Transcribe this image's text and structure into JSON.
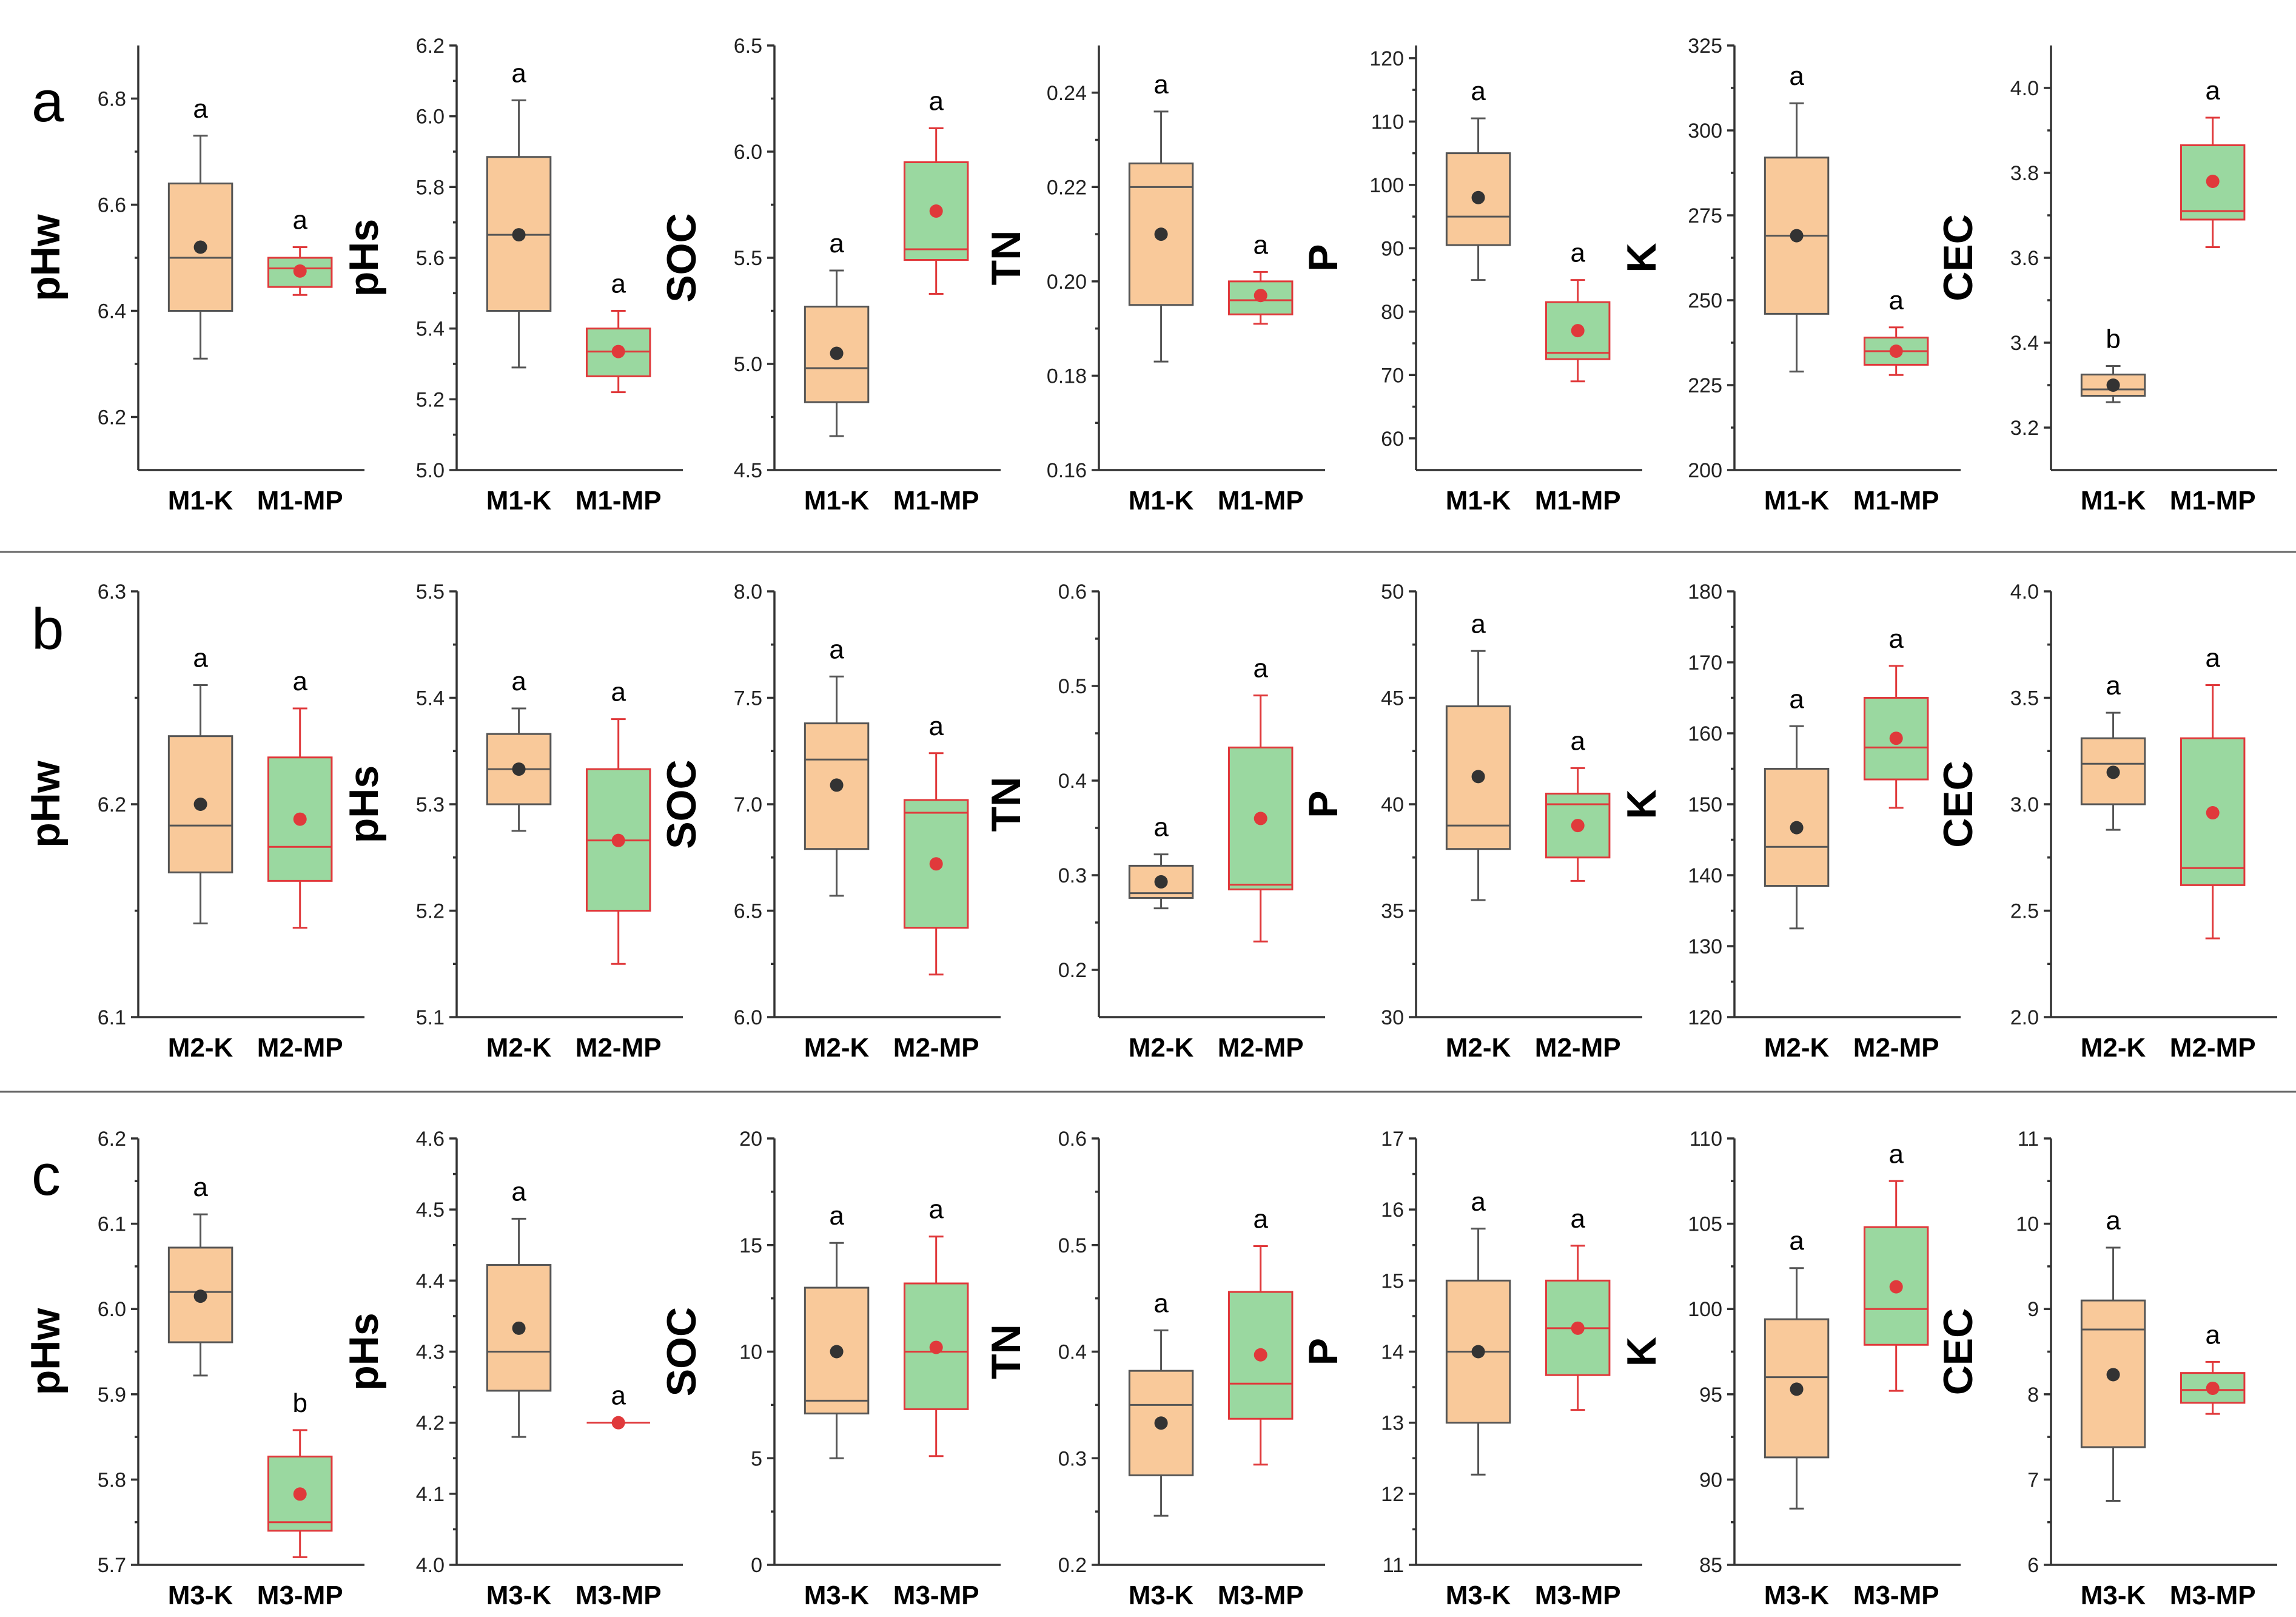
{
  "colors": {
    "control_fill": "#F9C99A",
    "control_stroke": "#555555",
    "control_mean": "#333333",
    "treatment_fill": "#9AD8A0",
    "treatment_stroke": "#E0393B",
    "treatment_mean": "#E0393B"
  },
  "chart_data": [
    {
      "panel": "a",
      "title": "pHw",
      "type": "box",
      "ylabel": "pHw",
      "ylim": [
        6.1,
        6.9
      ],
      "ticks": [
        6.2,
        6.4,
        6.6,
        6.8
      ],
      "categories": [
        "M1-K",
        "M1-MP"
      ],
      "series": [
        {
          "name": "M1-K",
          "whisker_low": 6.31,
          "q1": 6.4,
          "median": 6.5,
          "q3": 6.64,
          "whisker_high": 6.73,
          "mean": 6.52,
          "sig": "a"
        },
        {
          "name": "M1-MP",
          "whisker_low": 6.43,
          "q1": 6.445,
          "median": 6.48,
          "q3": 6.5,
          "whisker_high": 6.52,
          "mean": 6.475,
          "sig": "a"
        }
      ]
    },
    {
      "panel": "a",
      "title": "pHs",
      "type": "box",
      "ylabel": "pHs",
      "ylim": [
        5.0,
        6.2
      ],
      "ticks": [
        5.0,
        5.2,
        5.4,
        5.6,
        5.8,
        6.0,
        6.2
      ],
      "categories": [
        "M1-K",
        "M1-MP"
      ],
      "series": [
        {
          "name": "M1-K",
          "whisker_low": 5.29,
          "q1": 5.45,
          "median": 5.665,
          "q3": 5.885,
          "whisker_high": 6.045,
          "mean": 5.665,
          "sig": "a"
        },
        {
          "name": "M1-MP",
          "whisker_low": 5.22,
          "q1": 5.265,
          "median": 5.335,
          "q3": 5.4,
          "whisker_high": 5.45,
          "mean": 5.335,
          "sig": "a"
        }
      ]
    },
    {
      "panel": "a",
      "title": "SOC",
      "type": "box",
      "ylabel": "SOC",
      "ylim": [
        4.5,
        6.5
      ],
      "ticks": [
        4.5,
        5.0,
        5.5,
        6.0,
        6.5
      ],
      "categories": [
        "M1-K",
        "M1-MP"
      ],
      "series": [
        {
          "name": "M1-K",
          "whisker_low": 4.66,
          "q1": 4.82,
          "median": 4.98,
          "q3": 5.27,
          "whisker_high": 5.44,
          "mean": 5.05,
          "sig": "a"
        },
        {
          "name": "M1-MP",
          "whisker_low": 5.33,
          "q1": 5.49,
          "median": 5.54,
          "q3": 5.95,
          "whisker_high": 6.11,
          "mean": 5.72,
          "sig": "a"
        }
      ]
    },
    {
      "panel": "a",
      "title": "TN",
      "type": "box",
      "ylabel": "TN",
      "ylim": [
        0.16,
        0.25
      ],
      "ticks": [
        0.16,
        0.18,
        0.2,
        0.22,
        0.24
      ],
      "categories": [
        "M1-K",
        "M1-MP"
      ],
      "series": [
        {
          "name": "M1-K",
          "whisker_low": 0.183,
          "q1": 0.195,
          "median": 0.22,
          "q3": 0.225,
          "whisker_high": 0.236,
          "mean": 0.21,
          "sig": "a"
        },
        {
          "name": "M1-MP",
          "whisker_low": 0.191,
          "q1": 0.193,
          "median": 0.196,
          "q3": 0.2,
          "whisker_high": 0.202,
          "mean": 0.197,
          "sig": "a"
        }
      ]
    },
    {
      "panel": "a",
      "title": "P",
      "type": "box",
      "ylabel": "P",
      "ylim": [
        55,
        122
      ],
      "ticks": [
        60,
        70,
        80,
        90,
        100,
        110,
        120
      ],
      "categories": [
        "M1-K",
        "M1-MP"
      ],
      "series": [
        {
          "name": "M1-K",
          "whisker_low": 85,
          "q1": 90.5,
          "median": 95,
          "q3": 105,
          "whisker_high": 110.5,
          "mean": 98,
          "sig": "a"
        },
        {
          "name": "M1-MP",
          "whisker_low": 69,
          "q1": 72.5,
          "median": 73.5,
          "q3": 81.5,
          "whisker_high": 85,
          "mean": 77,
          "sig": "a"
        }
      ]
    },
    {
      "panel": "a",
      "title": "K",
      "type": "box",
      "ylabel": "K",
      "ylim": [
        200,
        325
      ],
      "ticks": [
        200,
        225,
        250,
        275,
        300,
        325
      ],
      "categories": [
        "M1-K",
        "M1-MP"
      ],
      "series": [
        {
          "name": "M1-K",
          "whisker_low": 229,
          "q1": 246,
          "median": 269,
          "q3": 292,
          "whisker_high": 308,
          "mean": 269,
          "sig": "a"
        },
        {
          "name": "M1-MP",
          "whisker_low": 228,
          "q1": 231,
          "median": 235,
          "q3": 239,
          "whisker_high": 242,
          "mean": 235,
          "sig": "a"
        }
      ]
    },
    {
      "panel": "a",
      "title": "CEC",
      "type": "box",
      "ylabel": "CEC",
      "ylim": [
        3.1,
        4.1
      ],
      "ticks": [
        3.2,
        3.4,
        3.6,
        3.8,
        4.0
      ],
      "categories": [
        "M1-K",
        "M1-MP"
      ],
      "series": [
        {
          "name": "M1-K",
          "whisker_low": 3.26,
          "q1": 3.275,
          "median": 3.29,
          "q3": 3.325,
          "whisker_high": 3.345,
          "mean": 3.3,
          "sig": "b"
        },
        {
          "name": "M1-MP",
          "whisker_low": 3.625,
          "q1": 3.69,
          "median": 3.71,
          "q3": 3.865,
          "whisker_high": 3.93,
          "mean": 3.78,
          "sig": "a"
        }
      ]
    },
    {
      "panel": "b",
      "title": "pHw",
      "type": "box",
      "ylabel": "pHw",
      "ylim": [
        6.1,
        6.3
      ],
      "ticks": [
        6.1,
        6.2,
        6.3
      ],
      "categories": [
        "M2-K",
        "M2-MP"
      ],
      "series": [
        {
          "name": "M2-K",
          "whisker_low": 6.144,
          "q1": 6.168,
          "median": 6.19,
          "q3": 6.232,
          "whisker_high": 6.256,
          "mean": 6.2,
          "sig": "a"
        },
        {
          "name": "M2-MP",
          "whisker_low": 6.142,
          "q1": 6.164,
          "median": 6.18,
          "q3": 6.222,
          "whisker_high": 6.245,
          "mean": 6.193,
          "sig": "a"
        }
      ]
    },
    {
      "panel": "b",
      "title": "pHs",
      "type": "box",
      "ylabel": "pHs",
      "ylim": [
        5.1,
        5.5
      ],
      "ticks": [
        5.1,
        5.2,
        5.3,
        5.4,
        5.5
      ],
      "categories": [
        "M2-K",
        "M2-MP"
      ],
      "series": [
        {
          "name": "M2-K",
          "whisker_low": 5.275,
          "q1": 5.3,
          "median": 5.333,
          "q3": 5.366,
          "whisker_high": 5.39,
          "mean": 5.333,
          "sig": "a"
        },
        {
          "name": "M2-MP",
          "whisker_low": 5.15,
          "q1": 5.2,
          "median": 5.266,
          "q3": 5.333,
          "whisker_high": 5.38,
          "mean": 5.266,
          "sig": "a"
        }
      ]
    },
    {
      "panel": "b",
      "title": "SOC",
      "type": "box",
      "ylabel": "SOC",
      "ylim": [
        6.0,
        8.0
      ],
      "ticks": [
        6.0,
        6.5,
        7.0,
        7.5,
        8.0
      ],
      "categories": [
        "M2-K",
        "M2-MP"
      ],
      "series": [
        {
          "name": "M2-K",
          "whisker_low": 6.57,
          "q1": 6.79,
          "median": 7.21,
          "q3": 7.38,
          "whisker_high": 7.6,
          "mean": 7.09,
          "sig": "a"
        },
        {
          "name": "M2-MP",
          "whisker_low": 6.2,
          "q1": 6.42,
          "median": 6.96,
          "q3": 7.02,
          "whisker_high": 7.24,
          "mean": 6.72,
          "sig": "a"
        }
      ]
    },
    {
      "panel": "b",
      "title": "TN",
      "type": "box",
      "ylabel": "TN",
      "ylim": [
        0.15,
        0.6
      ],
      "ticks": [
        0.2,
        0.3,
        0.4,
        0.5,
        0.6
      ],
      "categories": [
        "M2-K",
        "M2-MP"
      ],
      "series": [
        {
          "name": "M2-K",
          "whisker_low": 0.265,
          "q1": 0.276,
          "median": 0.281,
          "q3": 0.31,
          "whisker_high": 0.322,
          "mean": 0.293,
          "sig": "a"
        },
        {
          "name": "M2-MP",
          "whisker_low": 0.23,
          "q1": 0.285,
          "median": 0.29,
          "q3": 0.435,
          "whisker_high": 0.49,
          "mean": 0.36,
          "sig": "a"
        }
      ]
    },
    {
      "panel": "b",
      "title": "P",
      "type": "box",
      "ylabel": "P",
      "ylim": [
        30,
        50
      ],
      "ticks": [
        30,
        35,
        40,
        45,
        50
      ],
      "categories": [
        "M2-K",
        "M2-MP"
      ],
      "series": [
        {
          "name": "M2-K",
          "whisker_low": 35.5,
          "q1": 37.9,
          "median": 39,
          "q3": 44.6,
          "whisker_high": 47.2,
          "mean": 41.3,
          "sig": "a"
        },
        {
          "name": "M2-MP",
          "whisker_low": 36.4,
          "q1": 37.5,
          "median": 40,
          "q3": 40.5,
          "whisker_high": 41.7,
          "mean": 39,
          "sig": "a"
        }
      ]
    },
    {
      "panel": "b",
      "title": "K",
      "type": "box",
      "ylabel": "K",
      "ylim": [
        120,
        180
      ],
      "ticks": [
        120,
        130,
        140,
        150,
        160,
        170,
        180
      ],
      "categories": [
        "M2-K",
        "M2-MP"
      ],
      "series": [
        {
          "name": "M2-K",
          "whisker_low": 132.5,
          "q1": 138.5,
          "median": 144,
          "q3": 155,
          "whisker_high": 161,
          "mean": 146.7,
          "sig": "a"
        },
        {
          "name": "M2-MP",
          "whisker_low": 149.5,
          "q1": 153.5,
          "median": 158,
          "q3": 165,
          "whisker_high": 169.5,
          "mean": 159.3,
          "sig": "a"
        }
      ]
    },
    {
      "panel": "b",
      "title": "CEC",
      "type": "box",
      "ylabel": "CEC",
      "ylim": [
        2.0,
        4.0
      ],
      "ticks": [
        2.0,
        2.5,
        3.0,
        3.5,
        4.0
      ],
      "categories": [
        "M2-K",
        "M2-MP"
      ],
      "series": [
        {
          "name": "M2-K",
          "whisker_low": 2.88,
          "q1": 3.0,
          "median": 3.19,
          "q3": 3.31,
          "whisker_high": 3.43,
          "mean": 3.15,
          "sig": "a"
        },
        {
          "name": "M2-MP",
          "whisker_low": 2.37,
          "q1": 2.62,
          "median": 2.7,
          "q3": 3.31,
          "whisker_high": 3.56,
          "mean": 2.96,
          "sig": "a"
        }
      ]
    },
    {
      "panel": "c",
      "title": "pHw",
      "type": "box",
      "ylabel": "pHw",
      "ylim": [
        5.7,
        6.2
      ],
      "ticks": [
        5.7,
        5.8,
        5.9,
        6.0,
        6.1,
        6.2
      ],
      "categories": [
        "M3-K",
        "M3-MP"
      ],
      "series": [
        {
          "name": "M3-K",
          "whisker_low": 5.922,
          "q1": 5.961,
          "median": 6.02,
          "q3": 6.072,
          "whisker_high": 6.111,
          "mean": 6.015,
          "sig": "a"
        },
        {
          "name": "M3-MP",
          "whisker_low": 5.709,
          "q1": 5.74,
          "median": 5.75,
          "q3": 5.827,
          "whisker_high": 5.858,
          "mean": 5.783,
          "sig": "b"
        }
      ]
    },
    {
      "panel": "c",
      "title": "pHs",
      "type": "box",
      "ylabel": "pHs",
      "ylim": [
        4.0,
        4.6
      ],
      "ticks": [
        4.0,
        4.1,
        4.2,
        4.3,
        4.4,
        4.5,
        4.6
      ],
      "categories": [
        "M3-K",
        "M3-MP"
      ],
      "series": [
        {
          "name": "M3-K",
          "whisker_low": 4.18,
          "q1": 4.245,
          "median": 4.3,
          "q3": 4.422,
          "whisker_high": 4.487,
          "mean": 4.333,
          "sig": "a"
        },
        {
          "name": "M3-MP",
          "whisker_low": 4.2,
          "q1": 4.2,
          "median": 4.2,
          "q3": 4.2,
          "whisker_high": 4.2,
          "mean": 4.2,
          "sig": "a"
        }
      ]
    },
    {
      "panel": "c",
      "title": "SOC",
      "type": "box",
      "ylabel": "SOC",
      "ylim": [
        0,
        20
      ],
      "ticks": [
        0,
        5,
        10,
        15,
        20
      ],
      "categories": [
        "M3-K",
        "M3-MP"
      ],
      "series": [
        {
          "name": "M3-K",
          "whisker_low": 5.0,
          "q1": 7.1,
          "median": 7.7,
          "q3": 13.0,
          "whisker_high": 15.1,
          "mean": 10.0,
          "sig": "a"
        },
        {
          "name": "M3-MP",
          "whisker_low": 5.1,
          "q1": 7.3,
          "median": 10.0,
          "q3": 13.2,
          "whisker_high": 15.4,
          "mean": 10.2,
          "sig": "a"
        }
      ]
    },
    {
      "panel": "c",
      "title": "TN",
      "type": "box",
      "ylabel": "TN",
      "ylim": [
        0.2,
        0.6
      ],
      "ticks": [
        0.2,
        0.3,
        0.4,
        0.5,
        0.6
      ],
      "categories": [
        "M3-K",
        "M3-MP"
      ],
      "series": [
        {
          "name": "M3-K",
          "whisker_low": 0.246,
          "q1": 0.284,
          "median": 0.35,
          "q3": 0.382,
          "whisker_high": 0.42,
          "mean": 0.333,
          "sig": "a"
        },
        {
          "name": "M3-MP",
          "whisker_low": 0.294,
          "q1": 0.337,
          "median": 0.37,
          "q3": 0.456,
          "whisker_high": 0.499,
          "mean": 0.397,
          "sig": "a"
        }
      ]
    },
    {
      "panel": "c",
      "title": "P",
      "type": "box",
      "ylabel": "P",
      "ylim": [
        11,
        17
      ],
      "ticks": [
        11,
        12,
        13,
        14,
        15,
        16,
        17
      ],
      "categories": [
        "M3-K",
        "M3-MP"
      ],
      "series": [
        {
          "name": "M3-K",
          "whisker_low": 12.27,
          "q1": 13.0,
          "median": 14.0,
          "q3": 15.0,
          "whisker_high": 15.73,
          "mean": 14.0,
          "sig": "a"
        },
        {
          "name": "M3-MP",
          "whisker_low": 13.18,
          "q1": 13.67,
          "median": 14.33,
          "q3": 15.0,
          "whisker_high": 15.49,
          "mean": 14.33,
          "sig": "a"
        }
      ]
    },
    {
      "panel": "c",
      "title": "K",
      "type": "box",
      "ylabel": "K",
      "ylim": [
        85,
        110
      ],
      "ticks": [
        85,
        90,
        95,
        100,
        105,
        110
      ],
      "categories": [
        "M3-K",
        "M3-MP"
      ],
      "series": [
        {
          "name": "M3-K",
          "whisker_low": 88.3,
          "q1": 91.3,
          "median": 96.0,
          "q3": 99.4,
          "whisker_high": 102.4,
          "mean": 95.3,
          "sig": "a"
        },
        {
          "name": "M3-MP",
          "whisker_low": 95.2,
          "q1": 97.9,
          "median": 100.0,
          "q3": 104.8,
          "whisker_high": 107.5,
          "mean": 101.3,
          "sig": "a"
        }
      ]
    },
    {
      "panel": "c",
      "title": "CEC",
      "type": "box",
      "ylabel": "CEC",
      "ylim": [
        6,
        11
      ],
      "ticks": [
        6,
        7,
        8,
        9,
        10,
        11
      ],
      "categories": [
        "M3-K",
        "M3-MP"
      ],
      "series": [
        {
          "name": "M3-K",
          "whisker_low": 6.75,
          "q1": 7.38,
          "median": 8.76,
          "q3": 9.1,
          "whisker_high": 9.72,
          "mean": 8.23,
          "sig": "a"
        },
        {
          "name": "M3-MP",
          "whisker_low": 7.77,
          "q1": 7.9,
          "median": 8.05,
          "q3": 8.25,
          "whisker_high": 8.38,
          "mean": 8.07,
          "sig": "a"
        }
      ]
    }
  ]
}
